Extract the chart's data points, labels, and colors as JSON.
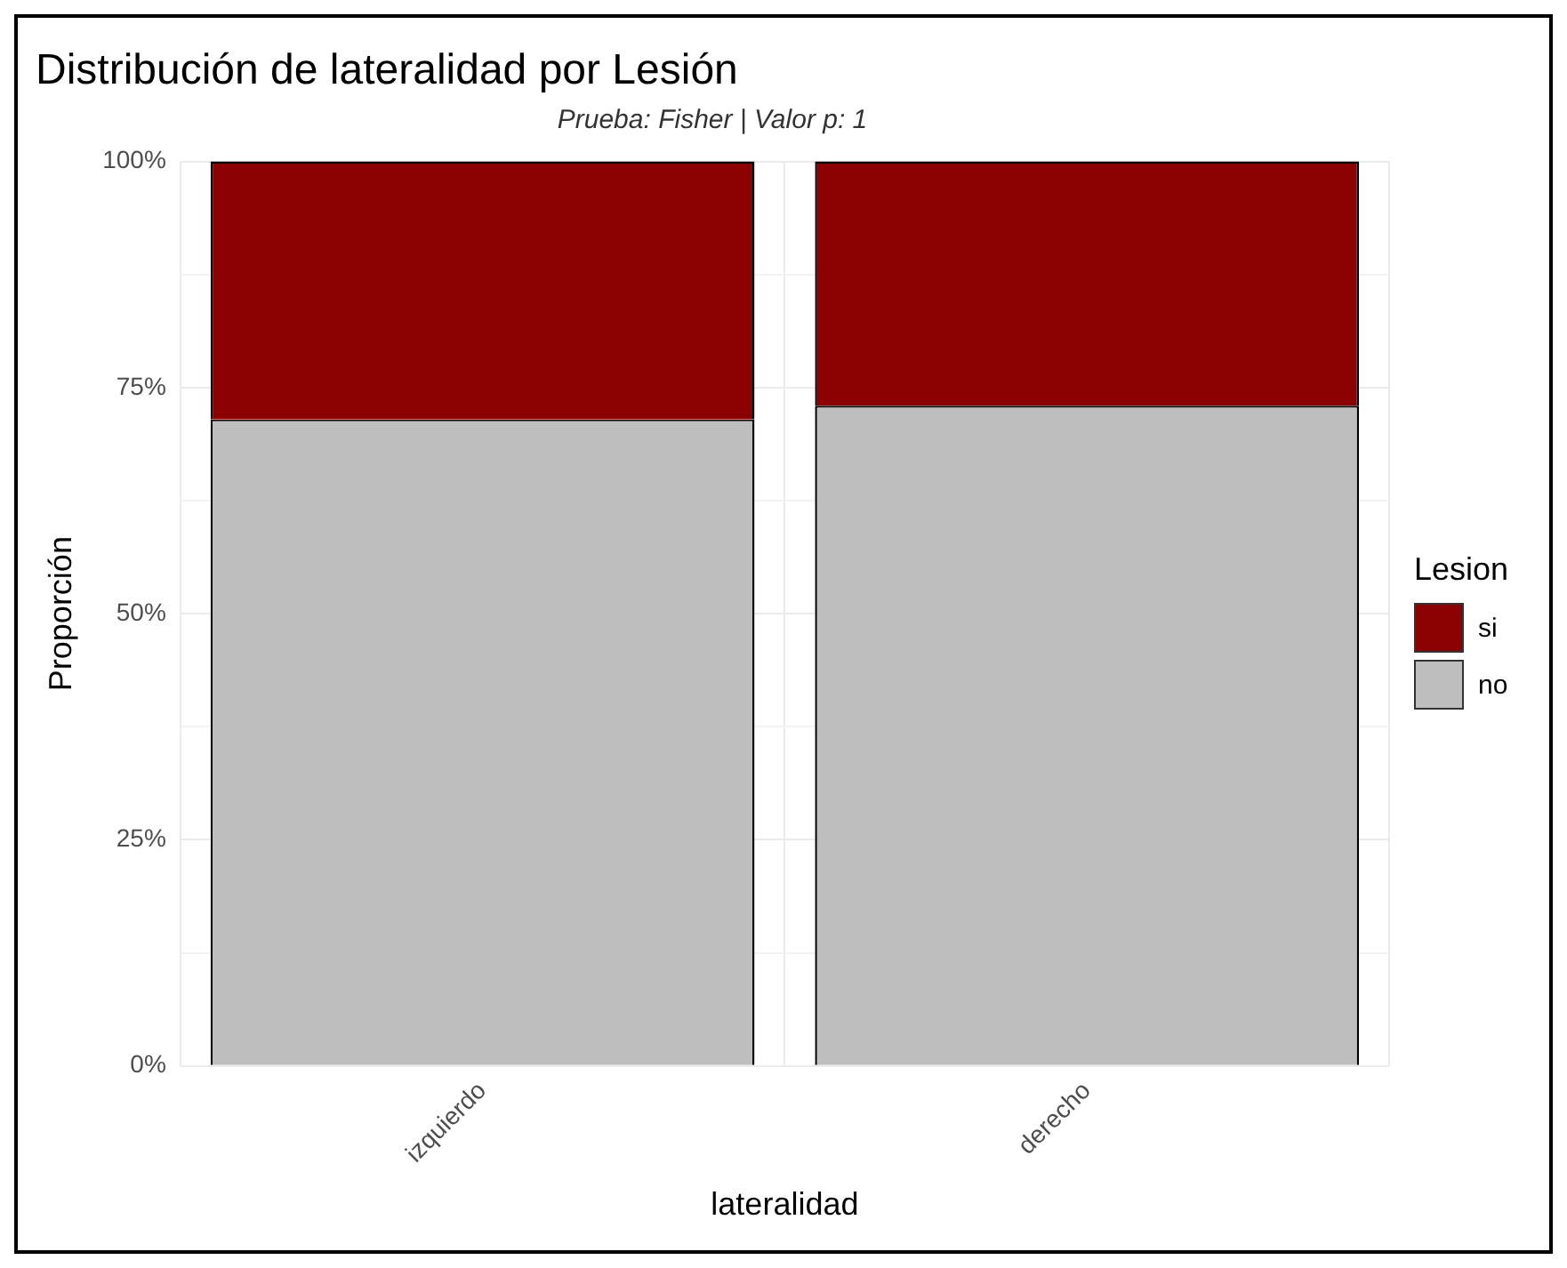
{
  "chart_data": {
    "type": "bar",
    "title": "Distribución de lateralidad por Lesión",
    "subtitle": "Prueba: Fisher | Valor p: 1",
    "xlabel": "lateralidad",
    "ylabel": "Proporción",
    "legend_title": "Lesion",
    "categories": [
      "izquierdo",
      "derecho"
    ],
    "stacked": true,
    "series": [
      {
        "name": "no",
        "color": "#bebebe",
        "values": [
          71.5,
          73
        ]
      },
      {
        "name": "si",
        "color": "#8b0000",
        "values": [
          28.5,
          27
        ]
      }
    ],
    "ylim": [
      0,
      100
    ],
    "yticks": [
      {
        "value": 0,
        "label": "0%"
      },
      {
        "value": 12.5,
        "label": null
      },
      {
        "value": 25,
        "label": "25%"
      },
      {
        "value": 37.5,
        "label": null
      },
      {
        "value": 50,
        "label": "50%"
      },
      {
        "value": 62.5,
        "label": null
      },
      {
        "value": 75,
        "label": "75%"
      },
      {
        "value": 87.5,
        "label": null
      },
      {
        "value": 100,
        "label": "100%"
      }
    ],
    "grid": true,
    "legend": "right"
  }
}
